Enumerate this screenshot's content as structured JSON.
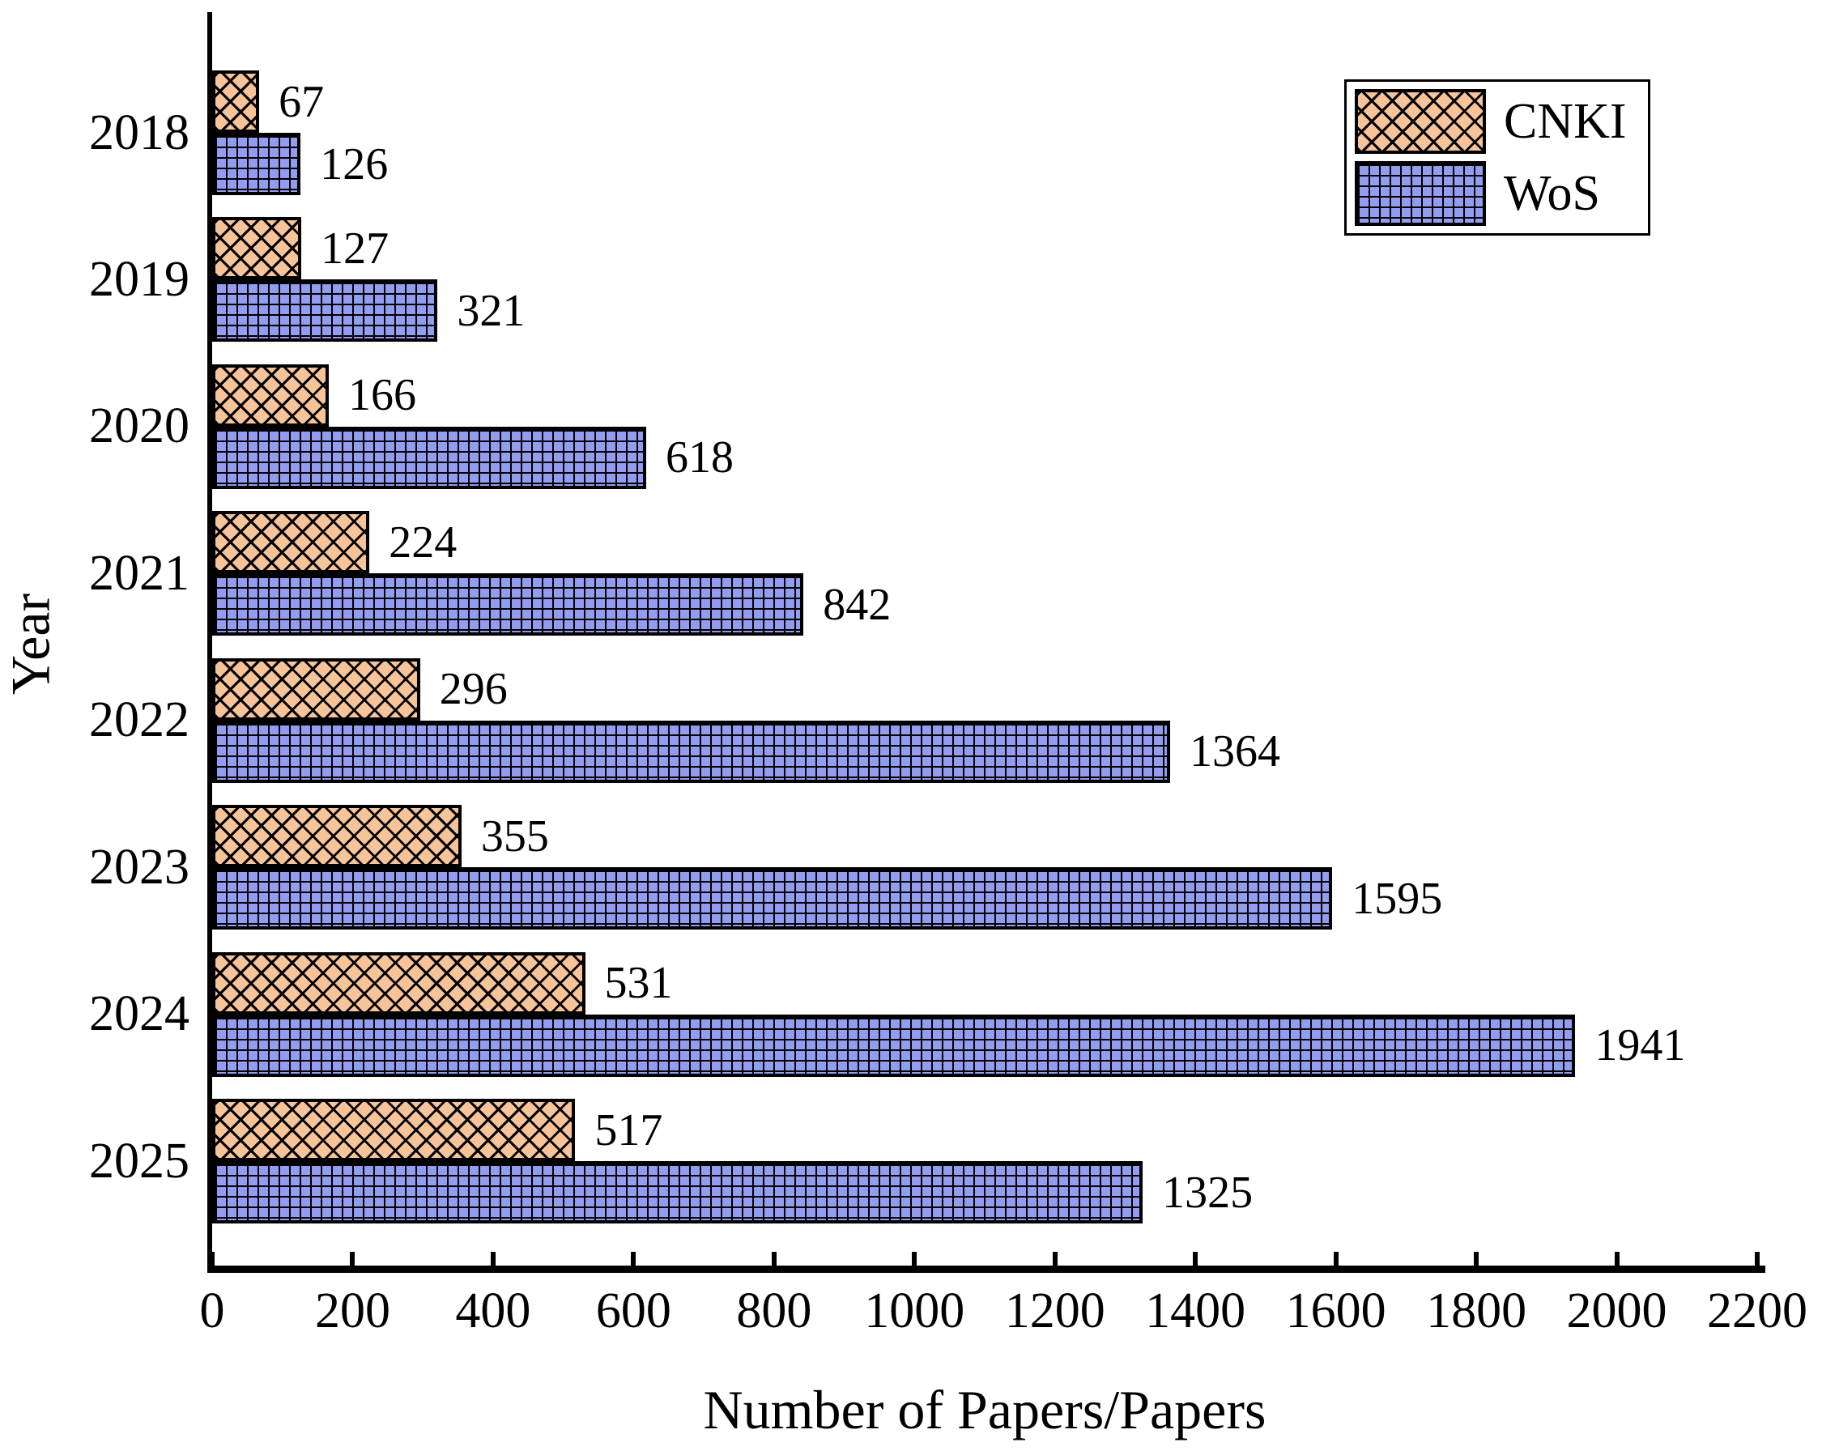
{
  "chart_data": {
    "type": "bar",
    "orientation": "horizontal",
    "title": "",
    "xlabel": "Number of Papers/Papers",
    "ylabel": "Year",
    "categories": [
      "2018",
      "2019",
      "2020",
      "2021",
      "2022",
      "2023",
      "2024",
      "2025"
    ],
    "series": [
      {
        "name": "CNKI",
        "values": [
          67,
          127,
          166,
          224,
          296,
          355,
          531,
          517
        ],
        "color": "#f7c499",
        "pattern": "diagonal-crosshatch",
        "edge_color": "#000000"
      },
      {
        "name": "WoS",
        "values": [
          126,
          321,
          618,
          842,
          1364,
          1595,
          1941,
          1325
        ],
        "color": "#939df0",
        "pattern": "square-grid",
        "edge_color": "#000000"
      }
    ],
    "xlim": [
      0,
      2200
    ],
    "x_ticks": [
      0,
      200,
      400,
      600,
      800,
      1000,
      1200,
      1400,
      1600,
      1800,
      2000,
      2200
    ],
    "grid": false,
    "legend_position": "top-right",
    "value_labels": true
  }
}
